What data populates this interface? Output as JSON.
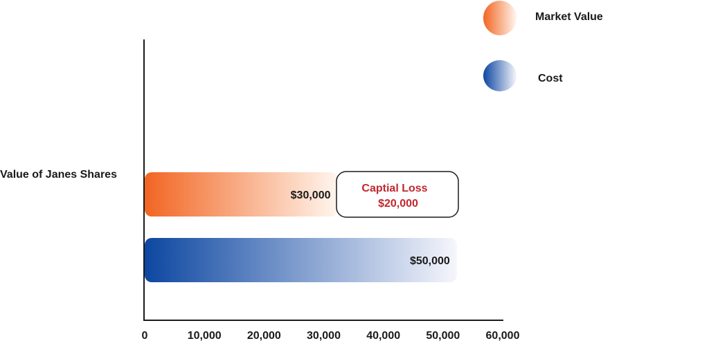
{
  "chart_data": {
    "type": "bar",
    "orientation": "horizontal",
    "category": "Value of Janes Shares",
    "xlim": [
      0,
      60000
    ],
    "x_ticks": [
      "0",
      "10,000",
      "20,000",
      "30,000",
      "40,000",
      "50,000",
      "60,000"
    ],
    "x_tick_values": [
      0,
      10000,
      20000,
      30000,
      40000,
      50000,
      60000
    ],
    "series": [
      {
        "name": "Market Value",
        "value": 30000,
        "label": "$30,000",
        "color": "#f26522"
      },
      {
        "name": "Cost",
        "value": 50000,
        "label": "$50,000",
        "color": "#0d47a1"
      }
    ],
    "annotation": {
      "line1": "Captial Loss",
      "line2": "$20,000",
      "color": "#c1272d"
    },
    "legend_position": "top-right",
    "grid": false
  }
}
